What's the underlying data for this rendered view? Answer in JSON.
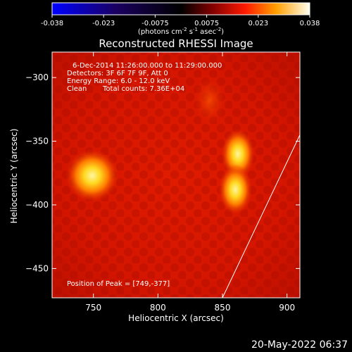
{
  "colorbar": {
    "ticks": [
      "-0.038",
      "-0.023",
      "-0.0075",
      "0.0075",
      "0.023",
      "0.038"
    ],
    "units_main": "(photons cm",
    "units_sup1": "-2",
    "units_mid": " s",
    "units_sup2": "-1",
    "units_end": " asec",
    "units_sup3": "-2",
    "units_close": ")",
    "vmin": -0.038,
    "vmax": 0.038
  },
  "chart_data": {
    "type": "heatmap",
    "title": "Reconstructed RHESSI Image",
    "xlabel": "Heliocentric X (arcsec)",
    "ylabel": "Heliocentric Y (arcsec)",
    "xlim": [
      718,
      910
    ],
    "ylim": [
      -473,
      -280
    ],
    "xticks": [
      750,
      800,
      850,
      900
    ],
    "yticks": [
      -450,
      -400,
      -350,
      -300
    ],
    "sources": [
      {
        "x": 749,
        "y": -377,
        "level": 1.0
      },
      {
        "x": 862,
        "y": -360,
        "level": 0.85
      },
      {
        "x": 860,
        "y": -388,
        "level": 0.78
      },
      {
        "x": 840,
        "y": -318,
        "level": 0.35
      }
    ],
    "peak": [
      749,
      -377
    ],
    "limb_line": [
      [
        850,
        -473
      ],
      [
        910,
        -345
      ]
    ],
    "colormap": "RHESSI thermal"
  },
  "info": {
    "line1": "6-Dec-2014 11:26:00.000 to 11:29:00.000",
    "line2": "Detectors: 3F 6F 7F 9F, Att 0",
    "line3": "Energy Range: 6.0 - 12.0 keV",
    "line4_a": "Clean",
    "line4_b": "Total counts: 7.36E+04",
    "peak_text": "Position of Peak = [749,-377]"
  },
  "timestamp": "20-May-2022 06:37"
}
